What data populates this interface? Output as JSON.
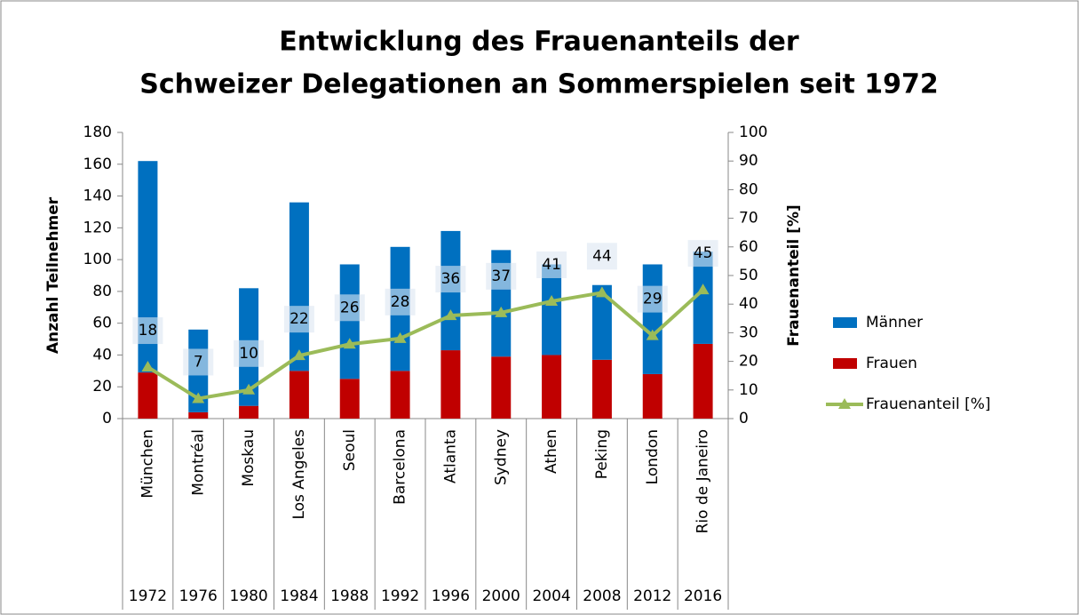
{
  "chart_data": {
    "type": "bar",
    "title": [
      "Entwicklung des Frauenanteils der",
      "Schweizer Delegationen an Sommerspielen seit 1972"
    ],
    "ylabel": "Anzahl Teilnehmer",
    "y2label": "Frauenanteil [%]",
    "categories": [
      "München",
      "Montréal",
      "Moskau",
      "Los Angeles",
      "Seoul",
      "Barcelona",
      "Atlanta",
      "Sydney",
      "Athen",
      "Peking",
      "London",
      "Rio de Janeiro"
    ],
    "years": [
      "1972",
      "1976",
      "1980",
      "1984",
      "1988",
      "1992",
      "1996",
      "2000",
      "2004",
      "2008",
      "2012",
      "2016"
    ],
    "stacked": true,
    "series": [
      {
        "name": "Männer",
        "color": "#0070c0",
        "values": [
          133,
          52,
          74,
          106,
          72,
          78,
          75,
          67,
          57,
          47,
          69,
          58
        ]
      },
      {
        "name": "Frauen",
        "color": "#c00000",
        "values": [
          29,
          4,
          8,
          30,
          25,
          30,
          43,
          39,
          40,
          37,
          28,
          47
        ]
      },
      {
        "name": "Frauenanteil [%]",
        "color": "#9bbb59",
        "type": "line",
        "axis": "y2",
        "values": [
          18,
          7,
          10,
          22,
          26,
          28,
          36,
          37,
          41,
          44,
          29,
          45
        ]
      }
    ],
    "ylim": [
      0,
      180
    ],
    "yticks": [
      0,
      20,
      40,
      60,
      80,
      100,
      120,
      140,
      160,
      180
    ],
    "y2lim": [
      0,
      100
    ],
    "y2ticks": [
      0,
      10,
      20,
      30,
      40,
      50,
      60,
      70,
      80,
      90,
      100
    ],
    "legend": "right"
  }
}
